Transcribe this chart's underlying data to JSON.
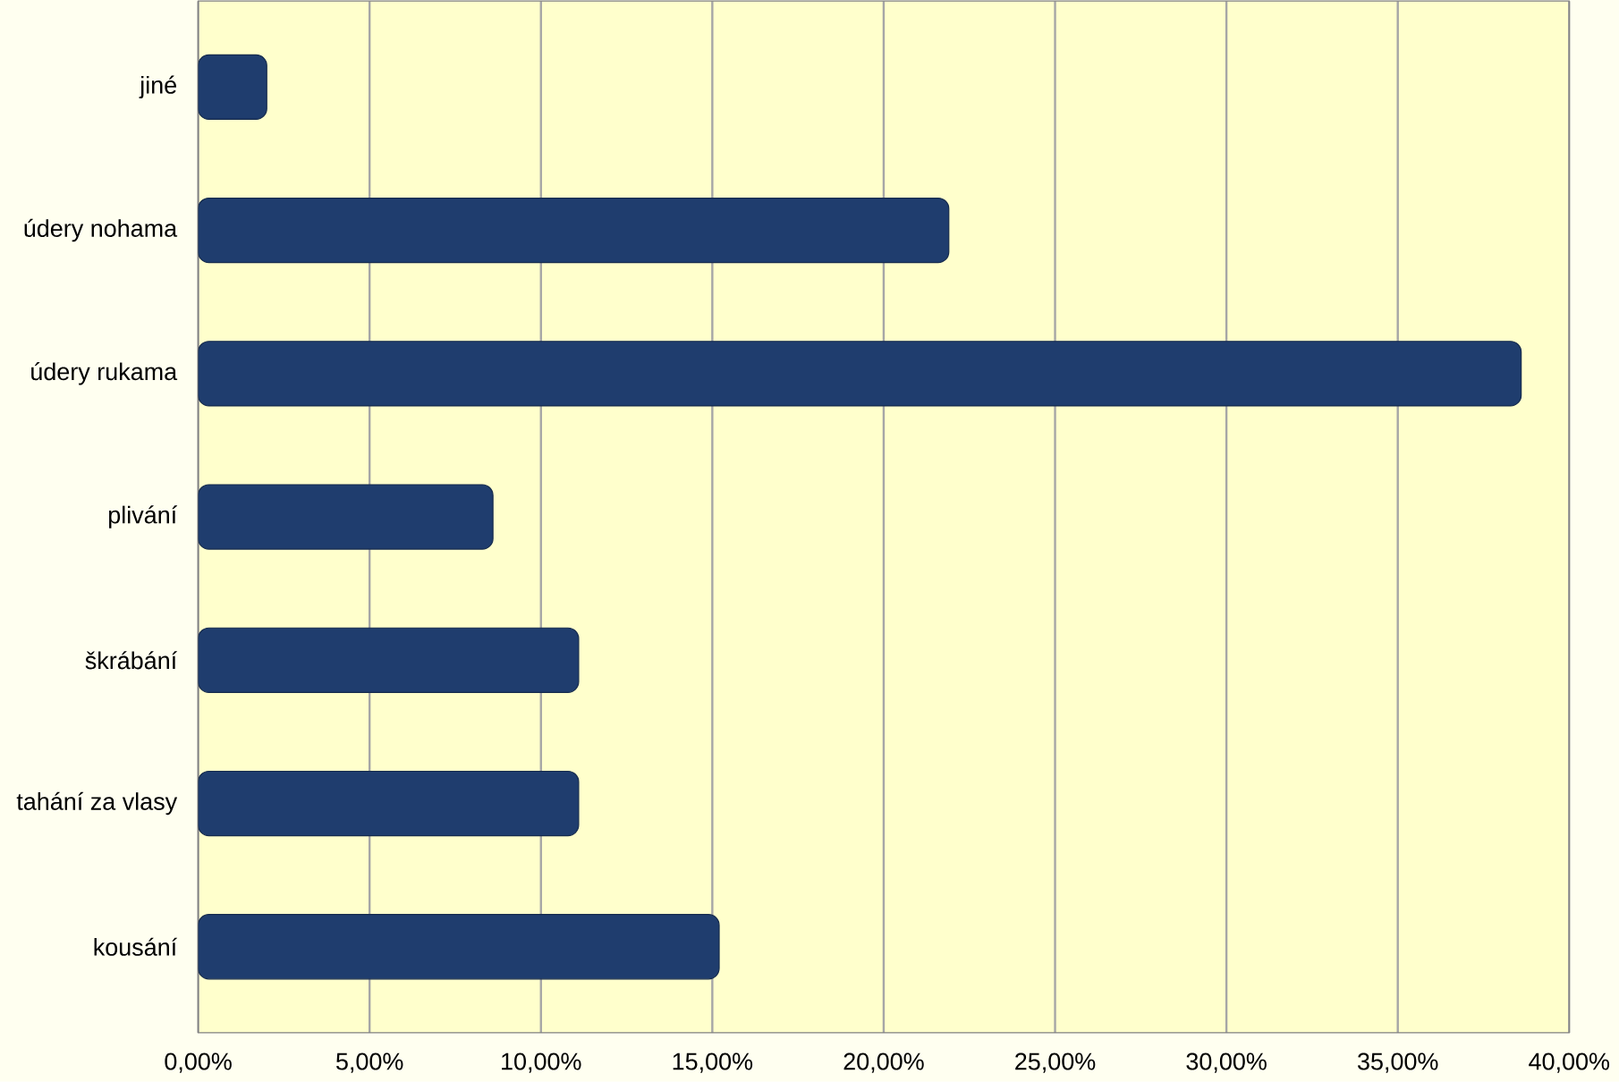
{
  "chart_data": {
    "type": "bar",
    "orientation": "horizontal",
    "categories": [
      "jiné",
      "údery nohama",
      "údery rukama",
      "plivání",
      "škrábání",
      "tahání za vlasy",
      "kousání"
    ],
    "values": [
      2.0,
      21.9,
      38.6,
      8.6,
      11.1,
      11.1,
      15.2
    ],
    "color": "#1f3d6e",
    "xlim": [
      0,
      40
    ],
    "xticks": [
      {
        "value": 0,
        "label": "0,00%"
      },
      {
        "value": 5,
        "label": "5,00%"
      },
      {
        "value": 10,
        "label": "10,00%"
      },
      {
        "value": 15,
        "label": "15,00%"
      },
      {
        "value": 20,
        "label": "20,00%"
      },
      {
        "value": 25,
        "label": "25,00%"
      },
      {
        "value": 30,
        "label": "30,00%"
      },
      {
        "value": 35,
        "label": "35,00%"
      },
      {
        "value": 40,
        "label": "40,00%"
      }
    ],
    "grid": "x"
  }
}
